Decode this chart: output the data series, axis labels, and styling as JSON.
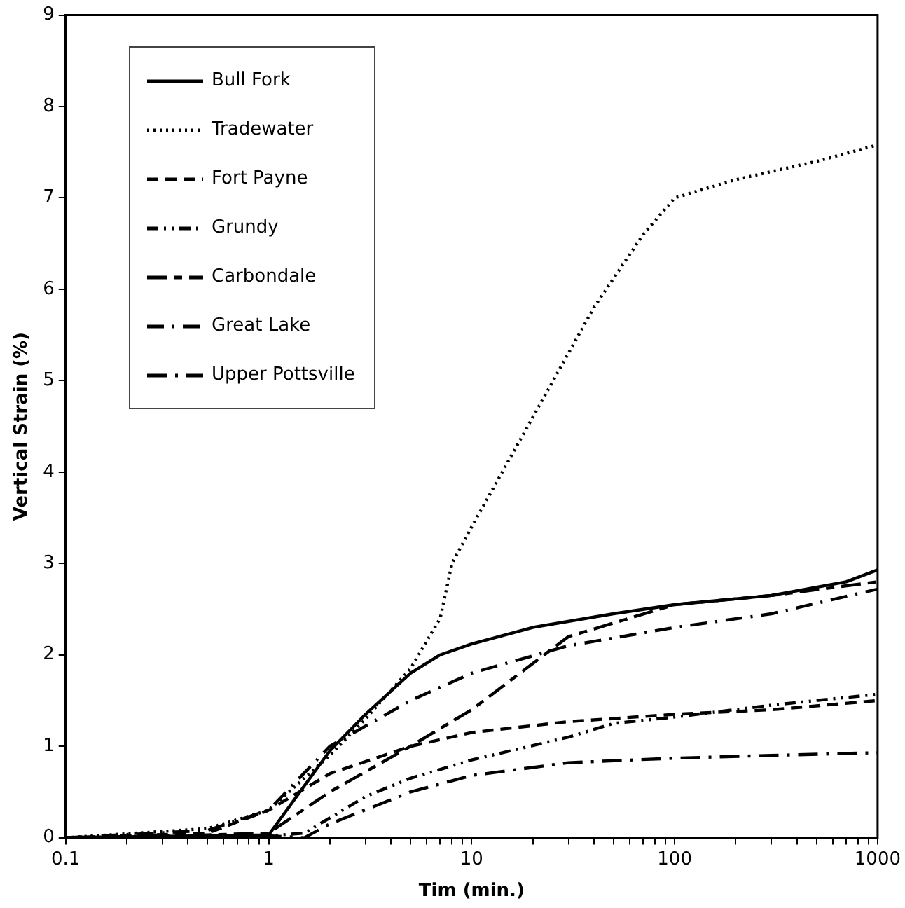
{
  "chart_data": {
    "type": "line",
    "xlabel": "Tim (min.)",
    "ylabel": "Vertical Strain (%)",
    "log": "x",
    "xlim": [
      0.1,
      1000
    ],
    "ylim": [
      0,
      9
    ],
    "xticks": [
      0.1,
      {
        "value": 0.2,
        "label": null
      },
      {
        "value": 0.3,
        "label": null
      },
      {
        "value": 0.4,
        "label": null
      },
      {
        "value": 0.5,
        "label": null
      },
      {
        "value": 0.6,
        "label": null
      },
      {
        "value": 0.7,
        "label": null
      },
      {
        "value": 0.8,
        "label": null
      },
      {
        "value": 0.9,
        "label": null
      },
      1,
      {
        "value": 2,
        "label": null
      },
      {
        "value": 3,
        "label": null
      },
      {
        "value": 4,
        "label": null
      },
      {
        "value": 5,
        "label": null
      },
      {
        "value": 6,
        "label": null
      },
      {
        "value": 7,
        "label": null
      },
      {
        "value": 8,
        "label": null
      },
      {
        "value": 9,
        "label": null
      },
      10,
      {
        "value": 20,
        "label": null
      },
      {
        "value": 30,
        "label": null
      },
      {
        "value": 40,
        "label": null
      },
      {
        "value": 50,
        "label": null
      },
      {
        "value": 60,
        "label": null
      },
      {
        "value": 70,
        "label": null
      },
      {
        "value": 80,
        "label": null
      },
      {
        "value": 90,
        "label": null
      },
      100,
      {
        "value": 200,
        "label": null
      },
      {
        "value": 300,
        "label": null
      },
      {
        "value": 400,
        "label": null
      },
      {
        "value": 500,
        "label": null
      },
      {
        "value": 600,
        "label": null
      },
      {
        "value": 700,
        "label": null
      },
      {
        "value": 800,
        "label": null
      },
      {
        "value": 900,
        "label": null
      },
      1000
    ],
    "yticks": [
      0,
      1,
      2,
      3,
      4,
      5,
      6,
      7,
      8,
      9
    ],
    "grid": false,
    "legend": "top left",
    "marker": "none",
    "series": [
      {
        "name": "Bull Fork",
        "color": "#000000",
        "line_style": "solid",
        "x": [
          0.1,
          0.5,
          1,
          2,
          3,
          5,
          7,
          10,
          20,
          50,
          100,
          300,
          700,
          1000
        ],
        "values": [
          0,
          0.02,
          0.03,
          0.95,
          1.35,
          1.8,
          2.0,
          2.12,
          2.3,
          2.45,
          2.55,
          2.65,
          2.8,
          2.93
        ]
      },
      {
        "name": "Tradewater",
        "color": "#000000",
        "line_style": "dotted",
        "x": [
          0.1,
          0.5,
          1,
          2,
          3,
          5,
          7,
          8,
          10,
          20,
          40,
          70,
          100,
          200,
          500,
          1000
        ],
        "values": [
          0,
          0.1,
          0.3,
          0.9,
          1.3,
          1.85,
          2.4,
          3.0,
          3.4,
          4.6,
          5.8,
          6.6,
          7.0,
          7.2,
          7.4,
          7.58
        ]
      },
      {
        "name": "Fort Payne",
        "color": "#000000",
        "line_style": "dashed",
        "x": [
          0.1,
          0.5,
          1,
          2,
          5,
          10,
          30,
          100,
          300,
          1000
        ],
        "values": [
          0,
          0.05,
          0.3,
          0.7,
          1.0,
          1.15,
          1.27,
          1.35,
          1.4,
          1.5
        ]
      },
      {
        "name": "Grundy",
        "color": "#000000",
        "line_style": "dashdotdot",
        "x": [
          0.1,
          1,
          1.5,
          3,
          5,
          10,
          30,
          50,
          100,
          300,
          1000
        ],
        "values": [
          0,
          0.02,
          0.05,
          0.45,
          0.65,
          0.85,
          1.1,
          1.25,
          1.32,
          1.45,
          1.57
        ]
      },
      {
        "name": "Carbondale",
        "color": "#000000",
        "line_style": "longdash",
        "x": [
          0.1,
          0.5,
          1,
          2,
          5,
          10,
          30,
          100,
          300,
          1000
        ],
        "values": [
          0,
          0.03,
          0.05,
          0.5,
          1.0,
          1.4,
          2.2,
          2.55,
          2.65,
          2.8
        ]
      },
      {
        "name": "Great Lake",
        "color": "#000000",
        "line_style": "dashdot",
        "x": [
          0.1,
          0.5,
          1,
          2,
          5,
          10,
          30,
          100,
          300,
          1000
        ],
        "values": [
          0,
          0.08,
          0.3,
          1.0,
          1.5,
          1.8,
          2.1,
          2.3,
          2.45,
          2.72
        ]
      },
      {
        "name": "Upper Pottsville",
        "color": "#000000",
        "line_style": "longdashdot",
        "x": [
          0.1,
          1,
          1.5,
          2,
          5,
          10,
          30,
          100,
          300,
          1000
        ],
        "values": [
          0,
          0.02,
          0,
          0.15,
          0.5,
          0.68,
          0.82,
          0.87,
          0.9,
          0.93
        ]
      }
    ]
  }
}
